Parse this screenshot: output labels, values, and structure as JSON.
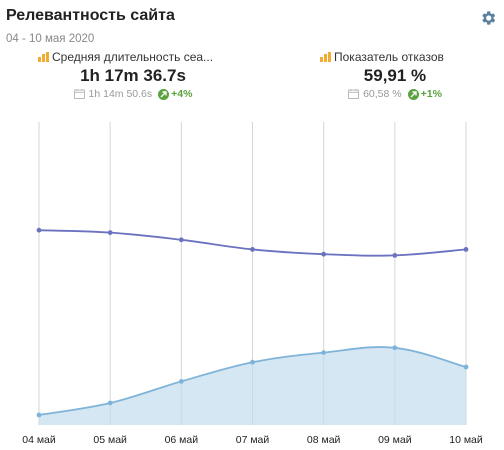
{
  "header": {
    "title": "Релевантность сайта",
    "date_range": "04 - 10 мая 2020"
  },
  "metrics": [
    {
      "label": "Средняя длительность сеа...",
      "value": "1h 17m 36.7s",
      "previous": "1h 14m 50.6s",
      "delta": "+4%"
    },
    {
      "label": "Показатель отказов",
      "value": "59,91 %",
      "previous": "60,58 %",
      "delta": "+1%"
    }
  ],
  "colors": {
    "series_top": "#6b72c0",
    "series_bottom": "#7fb4d8",
    "series_bottom_fill": "#d4e6f3",
    "delta": "#5aa23e",
    "accent": "#f0ad32"
  },
  "chart_data": {
    "type": "line",
    "categories": [
      "04 май",
      "05 май",
      "06 май",
      "07 май",
      "08 май",
      "09 май",
      "10 май"
    ],
    "series": [
      {
        "values": [
          0.77,
          0.76,
          0.73,
          0.69,
          0.67,
          0.665,
          0.69
        ],
        "style": "line"
      },
      {
        "values": [
          0.0,
          0.05,
          0.14,
          0.22,
          0.26,
          0.28,
          0.2
        ],
        "style": "area"
      }
    ],
    "ylim": [
      0,
      1
    ],
    "grid": "vertical"
  }
}
